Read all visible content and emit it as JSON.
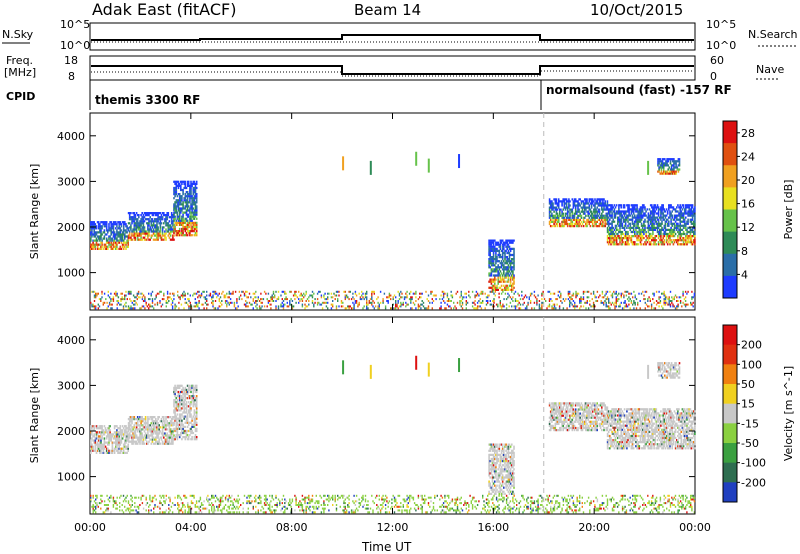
{
  "header": {
    "station": "Adak East (fitACF)",
    "beam": "Beam 14",
    "date": "10/Oct/2015"
  },
  "top_panels": {
    "nsky_label": "N.Sky",
    "nsearch_label": "N.Search",
    "nsky_ticks": [
      "10^5",
      "10^0"
    ],
    "nsearch_ticks": [
      "10^5",
      "10^0"
    ],
    "freq_label": "Freq.",
    "freq_unit": "[MHz]",
    "freq_ticks": [
      "18",
      "8"
    ],
    "nave_label": "Nave",
    "nave_ticks": [
      "60",
      "0"
    ],
    "cpid_label": "CPID",
    "cpid_segments": [
      {
        "text": "themis 3300 RF",
        "start_hour": 0
      },
      {
        "text": "normalsound (fast) -157 RF",
        "start_hour": 18.0
      }
    ]
  },
  "chart_data": [
    {
      "type": "heatmap",
      "name": "power",
      "ylabel": "Slant Range [km]",
      "xlabel": "Time UT",
      "x_ticks": [
        "00:00",
        "04:00",
        "08:00",
        "12:00",
        "16:00",
        "20:00",
        "00:00"
      ],
      "xlim_hours": [
        0,
        24
      ],
      "ylim": [
        180,
        4500
      ],
      "y_ticks": [
        1000,
        2000,
        3000,
        4000
      ],
      "colorbar": {
        "label": "Power [dB]",
        "ticks": [
          4,
          8,
          12,
          16,
          20,
          24,
          28
        ],
        "range": [
          0,
          30
        ],
        "colors": [
          "#1e3cff",
          "#2a6ea8",
          "#2e8b57",
          "#66c24a",
          "#e8e020",
          "#f0a020",
          "#e05010",
          "#dd1010"
        ]
      },
      "cpid_change_hour": 18.0
    },
    {
      "type": "heatmap",
      "name": "velocity",
      "ylabel": "Slant Range [km]",
      "xlabel": "Time UT",
      "x_ticks": [
        "00:00",
        "04:00",
        "08:00",
        "12:00",
        "16:00",
        "20:00",
        "00:00"
      ],
      "xlim_hours": [
        0,
        24
      ],
      "ylim": [
        180,
        4500
      ],
      "y_ticks": [
        1000,
        2000,
        3000,
        4000
      ],
      "colorbar": {
        "label": "Velocity [m s^-1]",
        "ticks": [
          "200",
          "100",
          "50",
          "15",
          "-15",
          "-50",
          "-100",
          "-200"
        ],
        "colors": [
          "#2040c0",
          "#2e6e50",
          "#3aa040",
          "#8ad040",
          "#c8c8c8",
          "#f0d020",
          "#f08010",
          "#e03010",
          "#dd1010"
        ]
      },
      "cpid_change_hour": 18.0
    }
  ],
  "echo_regions": [
    {
      "t0": 0.0,
      "t1": 1.5,
      "r0": 1500,
      "r1": 2100
    },
    {
      "t0": 1.5,
      "t1": 3.3,
      "r0": 1700,
      "r1": 2300
    },
    {
      "t0": 3.3,
      "t1": 4.2,
      "r0": 1800,
      "r1": 3000
    },
    {
      "t0": 15.8,
      "t1": 16.8,
      "r0": 600,
      "r1": 1700
    },
    {
      "t0": 18.2,
      "t1": 20.5,
      "r0": 2000,
      "r1": 2600
    },
    {
      "t0": 20.5,
      "t1": 24.0,
      "r0": 1600,
      "r1": 2500
    },
    {
      "t0": 22.5,
      "t1": 23.4,
      "r0": 3150,
      "r1": 3500
    }
  ]
}
